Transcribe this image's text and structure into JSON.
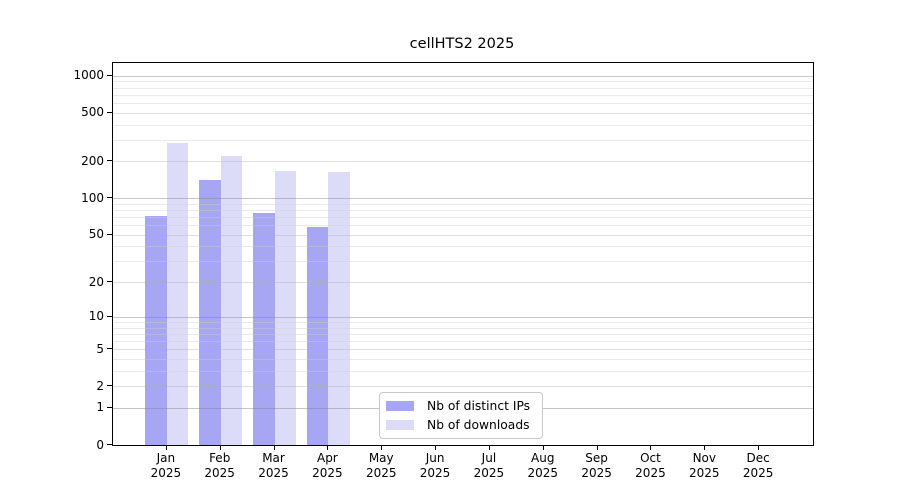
{
  "title": "cellHTS2 2025",
  "chart_data": {
    "type": "bar",
    "title": "cellHTS2 2025",
    "categories": [
      "Jan",
      "Feb",
      "Mar",
      "Apr",
      "May",
      "Jun",
      "Jul",
      "Aug",
      "Sep",
      "Oct",
      "Nov",
      "Dec"
    ],
    "year": "2025",
    "series": [
      {
        "name": "Nb of distinct IPs",
        "color": "#a6a6f2",
        "values": [
          71,
          140,
          76,
          58,
          null,
          null,
          null,
          null,
          null,
          null,
          null,
          null
        ]
      },
      {
        "name": "Nb of downloads",
        "color": "#dcdcf9",
        "values": [
          282,
          223,
          166,
          165,
          null,
          null,
          null,
          null,
          null,
          null,
          null,
          null
        ]
      }
    ],
    "y_ticks": [
      0,
      1,
      2,
      5,
      10,
      20,
      50,
      100,
      200,
      500,
      1000
    ],
    "y_minor_gridlines": [
      3,
      4,
      6,
      7,
      8,
      9,
      30,
      40,
      60,
      70,
      80,
      90,
      300,
      400,
      600,
      700,
      800,
      900
    ],
    "y_scale": "log10(1+y)",
    "ylim": [
      0,
      1266
    ],
    "grid": true,
    "legend_position": "lower center-left"
  }
}
